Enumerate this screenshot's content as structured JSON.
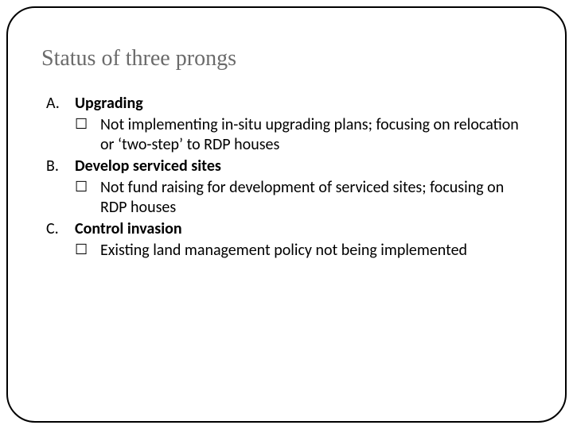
{
  "title": "Status of three prongs",
  "items": [
    {
      "marker": "A.",
      "heading": "Upgrading",
      "sub": "Not implementing in-situ upgrading plans; focusing on relocation or ‘two-step’ to RDP houses"
    },
    {
      "marker": "B.",
      "heading": "Develop serviced sites",
      "sub": "Not fund raising for development of serviced sites; focusing on RDP houses"
    },
    {
      "marker": "C.",
      "heading": "Control invasion",
      "sub": "Existing land management policy not being implemented"
    }
  ],
  "checkbox_glyph": "☐"
}
